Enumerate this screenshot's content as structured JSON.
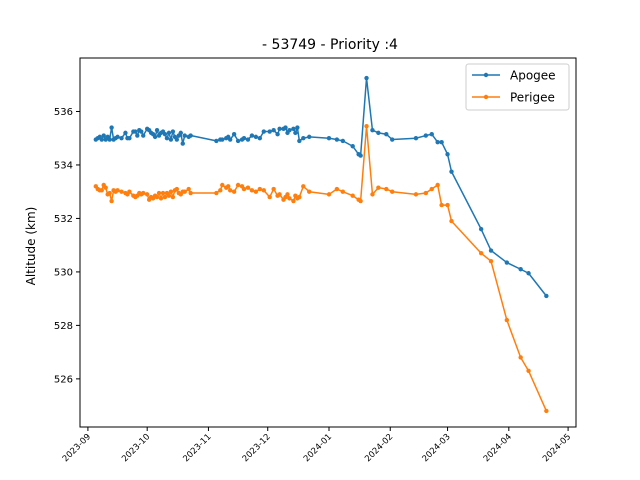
{
  "chart_data": {
    "type": "line",
    "title": "- 53749 - Priority :4",
    "xlabel": "",
    "ylabel": "Altitude (km)",
    "xlim": [
      "2023-08-28",
      "2024-05-05"
    ],
    "ylim": [
      524.2,
      538.0
    ],
    "x_ticks": [
      "2023-09-01",
      "2023-10-01",
      "2023-11-01",
      "2023-12-01",
      "2024-01-01",
      "2024-02-01",
      "2024-03-01",
      "2024-04-01",
      "2024-05-01"
    ],
    "x_tick_labels": [
      "2023-09",
      "2023-10",
      "2023-11",
      "2023-12",
      "2024-01",
      "2024-02",
      "2024-03",
      "2024-04",
      "2024-05"
    ],
    "y_ticks": [
      526,
      528,
      530,
      532,
      534,
      536
    ],
    "legend_position": "upper right",
    "grid": false,
    "series": [
      {
        "name": "Apogee",
        "color": "#1f77b4",
        "points": [
          [
            "2023-09-05",
            534.95
          ],
          [
            "2023-09-06",
            535.0
          ],
          [
            "2023-09-07",
            535.05
          ],
          [
            "2023-09-08",
            534.95
          ],
          [
            "2023-09-09",
            535.1
          ],
          [
            "2023-09-10",
            534.95
          ],
          [
            "2023-09-11",
            535.05
          ],
          [
            "2023-09-12",
            534.95
          ],
          [
            "2023-09-13",
            535.4
          ],
          [
            "2023-09-14",
            534.95
          ],
          [
            "2023-09-15",
            535.0
          ],
          [
            "2023-09-16",
            535.05
          ],
          [
            "2023-09-18",
            535.0
          ],
          [
            "2023-09-20",
            535.2
          ],
          [
            "2023-09-21",
            535.0
          ],
          [
            "2023-09-22",
            535.0
          ],
          [
            "2023-09-24",
            535.25
          ],
          [
            "2023-09-25",
            535.25
          ],
          [
            "2023-09-26",
            535.1
          ],
          [
            "2023-09-27",
            535.3
          ],
          [
            "2023-09-28",
            535.25
          ],
          [
            "2023-09-29",
            535.1
          ],
          [
            "2023-10-01",
            535.35
          ],
          [
            "2023-10-02",
            535.3
          ],
          [
            "2023-10-03",
            535.2
          ],
          [
            "2023-10-04",
            535.15
          ],
          [
            "2023-10-05",
            535.05
          ],
          [
            "2023-10-06",
            535.3
          ],
          [
            "2023-10-07",
            535.1
          ],
          [
            "2023-10-08",
            535.2
          ],
          [
            "2023-10-09",
            535.25
          ],
          [
            "2023-10-10",
            535.15
          ],
          [
            "2023-10-11",
            535.0
          ],
          [
            "2023-10-12",
            535.2
          ],
          [
            "2023-10-13",
            534.95
          ],
          [
            "2023-10-14",
            535.25
          ],
          [
            "2023-10-15",
            535.05
          ],
          [
            "2023-10-16",
            534.95
          ],
          [
            "2023-10-17",
            535.1
          ],
          [
            "2023-10-18",
            535.2
          ],
          [
            "2023-10-19",
            534.8
          ],
          [
            "2023-10-20",
            535.1
          ],
          [
            "2023-10-22",
            535.05
          ],
          [
            "2023-10-23",
            535.1
          ],
          [
            "2023-11-05",
            534.9
          ],
          [
            "2023-11-07",
            534.95
          ],
          [
            "2023-11-08",
            534.95
          ],
          [
            "2023-11-10",
            535.0
          ],
          [
            "2023-11-11",
            535.05
          ],
          [
            "2023-11-12",
            534.95
          ],
          [
            "2023-11-14",
            535.15
          ],
          [
            "2023-11-16",
            534.9
          ],
          [
            "2023-11-18",
            534.95
          ],
          [
            "2023-11-19",
            535.0
          ],
          [
            "2023-11-21",
            534.95
          ],
          [
            "2023-11-23",
            535.1
          ],
          [
            "2023-11-25",
            535.05
          ],
          [
            "2023-11-27",
            535.0
          ],
          [
            "2023-11-29",
            535.25
          ],
          [
            "2023-12-02",
            535.25
          ],
          [
            "2023-12-04",
            535.3
          ],
          [
            "2023-12-06",
            535.15
          ],
          [
            "2023-12-07",
            535.35
          ],
          [
            "2023-12-09",
            535.35
          ],
          [
            "2023-12-10",
            535.4
          ],
          [
            "2023-12-11",
            535.2
          ],
          [
            "2023-12-12",
            535.3
          ],
          [
            "2023-12-14",
            535.35
          ],
          [
            "2023-12-15",
            535.2
          ],
          [
            "2023-12-16",
            535.4
          ],
          [
            "2023-12-17",
            534.9
          ],
          [
            "2023-12-19",
            535.0
          ],
          [
            "2023-12-22",
            535.05
          ],
          [
            "2024-01-01",
            535.0
          ],
          [
            "2024-01-05",
            534.95
          ],
          [
            "2024-01-08",
            534.9
          ],
          [
            "2024-01-13",
            534.7
          ],
          [
            "2024-01-16",
            534.4
          ],
          [
            "2024-01-17",
            534.35
          ],
          [
            "2024-01-20",
            537.25
          ],
          [
            "2024-01-23",
            535.3
          ],
          [
            "2024-01-26",
            535.2
          ],
          [
            "2024-01-30",
            535.15
          ],
          [
            "2024-02-02",
            534.95
          ],
          [
            "2024-02-14",
            535.0
          ],
          [
            "2024-02-19",
            535.1
          ],
          [
            "2024-02-22",
            535.15
          ],
          [
            "2024-02-25",
            534.85
          ],
          [
            "2024-02-27",
            534.85
          ],
          [
            "2024-03-01",
            534.4
          ],
          [
            "2024-03-03",
            533.75
          ],
          [
            "2024-03-18",
            531.6
          ],
          [
            "2024-03-23",
            530.8
          ],
          [
            "2024-03-31",
            530.35
          ],
          [
            "2024-04-07",
            530.1
          ],
          [
            "2024-04-11",
            529.95
          ],
          [
            "2024-04-20",
            529.1
          ]
        ]
      },
      {
        "name": "Perigee",
        "color": "#ff7f0e",
        "points": [
          [
            "2023-09-05",
            533.2
          ],
          [
            "2023-09-06",
            533.1
          ],
          [
            "2023-09-07",
            533.05
          ],
          [
            "2023-09-08",
            533.05
          ],
          [
            "2023-09-09",
            533.25
          ],
          [
            "2023-09-10",
            533.15
          ],
          [
            "2023-09-11",
            532.9
          ],
          [
            "2023-09-12",
            532.95
          ],
          [
            "2023-09-13",
            532.65
          ],
          [
            "2023-09-14",
            533.05
          ],
          [
            "2023-09-15",
            533.0
          ],
          [
            "2023-09-16",
            533.05
          ],
          [
            "2023-09-18",
            533.0
          ],
          [
            "2023-09-20",
            532.95
          ],
          [
            "2023-09-21",
            532.9
          ],
          [
            "2023-09-22",
            533.0
          ],
          [
            "2023-09-24",
            532.85
          ],
          [
            "2023-09-25",
            532.8
          ],
          [
            "2023-09-26",
            532.85
          ],
          [
            "2023-09-27",
            532.95
          ],
          [
            "2023-09-28",
            532.9
          ],
          [
            "2023-09-29",
            532.95
          ],
          [
            "2023-10-01",
            532.9
          ],
          [
            "2023-10-02",
            532.7
          ],
          [
            "2023-10-03",
            532.8
          ],
          [
            "2023-10-04",
            532.75
          ],
          [
            "2023-10-05",
            532.85
          ],
          [
            "2023-10-06",
            532.8
          ],
          [
            "2023-10-07",
            532.95
          ],
          [
            "2023-10-08",
            532.75
          ],
          [
            "2023-10-09",
            532.95
          ],
          [
            "2023-10-10",
            532.8
          ],
          [
            "2023-10-11",
            532.95
          ],
          [
            "2023-10-12",
            532.85
          ],
          [
            "2023-10-13",
            533.0
          ],
          [
            "2023-10-14",
            532.8
          ],
          [
            "2023-10-15",
            533.05
          ],
          [
            "2023-10-16",
            533.1
          ],
          [
            "2023-10-17",
            532.95
          ],
          [
            "2023-10-18",
            532.9
          ],
          [
            "2023-10-19",
            533.0
          ],
          [
            "2023-10-20",
            533.0
          ],
          [
            "2023-10-22",
            533.1
          ],
          [
            "2023-10-23",
            532.95
          ],
          [
            "2023-11-05",
            532.95
          ],
          [
            "2023-11-07",
            533.05
          ],
          [
            "2023-11-08",
            533.25
          ],
          [
            "2023-11-10",
            533.15
          ],
          [
            "2023-11-11",
            533.2
          ],
          [
            "2023-11-12",
            533.05
          ],
          [
            "2023-11-14",
            533.0
          ],
          [
            "2023-11-16",
            533.25
          ],
          [
            "2023-11-18",
            533.2
          ],
          [
            "2023-11-19",
            533.1
          ],
          [
            "2023-11-21",
            533.15
          ],
          [
            "2023-11-23",
            533.05
          ],
          [
            "2023-11-25",
            533.0
          ],
          [
            "2023-11-27",
            533.1
          ],
          [
            "2023-11-29",
            533.05
          ],
          [
            "2023-12-02",
            532.8
          ],
          [
            "2023-12-04",
            533.1
          ],
          [
            "2023-12-06",
            532.85
          ],
          [
            "2023-12-07",
            532.9
          ],
          [
            "2023-12-09",
            532.7
          ],
          [
            "2023-12-10",
            532.8
          ],
          [
            "2023-12-11",
            532.9
          ],
          [
            "2023-12-12",
            532.75
          ],
          [
            "2023-12-14",
            532.65
          ],
          [
            "2023-12-15",
            532.85
          ],
          [
            "2023-12-16",
            532.75
          ],
          [
            "2023-12-17",
            532.8
          ],
          [
            "2023-12-19",
            533.2
          ],
          [
            "2023-12-22",
            533.0
          ],
          [
            "2024-01-01",
            532.9
          ],
          [
            "2024-01-05",
            533.1
          ],
          [
            "2024-01-08",
            533.0
          ],
          [
            "2024-01-13",
            532.85
          ],
          [
            "2024-01-16",
            532.7
          ],
          [
            "2024-01-17",
            532.65
          ],
          [
            "2024-01-20",
            535.45
          ],
          [
            "2024-01-23",
            532.9
          ],
          [
            "2024-01-26",
            533.15
          ],
          [
            "2024-01-30",
            533.1
          ],
          [
            "2024-02-02",
            533.0
          ],
          [
            "2024-02-14",
            532.9
          ],
          [
            "2024-02-19",
            532.95
          ],
          [
            "2024-02-22",
            533.1
          ],
          [
            "2024-02-25",
            533.25
          ],
          [
            "2024-02-27",
            532.5
          ],
          [
            "2024-03-01",
            532.5
          ],
          [
            "2024-03-03",
            531.9
          ],
          [
            "2024-03-18",
            530.7
          ],
          [
            "2024-03-23",
            530.4
          ],
          [
            "2024-03-31",
            528.2
          ],
          [
            "2024-04-07",
            526.8
          ],
          [
            "2024-04-11",
            526.3
          ],
          [
            "2024-04-20",
            524.8
          ]
        ]
      }
    ]
  }
}
